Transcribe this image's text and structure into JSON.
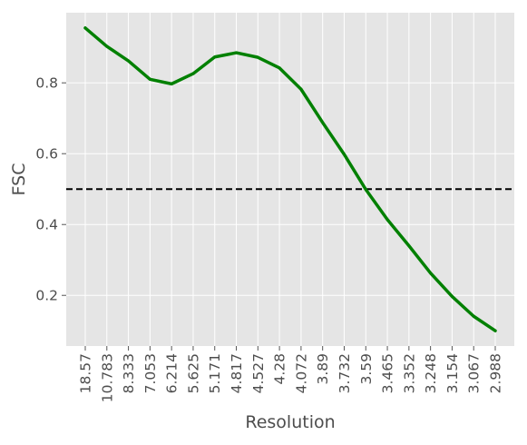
{
  "chart_data": {
    "type": "line",
    "title": "",
    "xlabel": "Resolution",
    "ylabel": "FSC",
    "categories": [
      "18.57",
      "10.783",
      "8.333",
      "7.053",
      "6.214",
      "5.625",
      "5.171",
      "4.817",
      "4.527",
      "4.28",
      "4.072",
      "3.89",
      "3.732",
      "3.59",
      "3.465",
      "3.352",
      "3.248",
      "3.154",
      "3.067",
      "2.988"
    ],
    "series": [
      {
        "color": "#008000",
        "values": [
          0.955,
          0.903,
          0.862,
          0.81,
          0.797,
          0.826,
          0.873,
          0.885,
          0.872,
          0.842,
          0.782,
          0.688,
          0.598,
          0.499,
          0.414,
          0.34,
          0.263,
          0.197,
          0.141,
          0.1
        ]
      }
    ],
    "threshold": {
      "value": 0.5,
      "style": "dashed",
      "color": "#000000"
    },
    "yticks": [
      0.2,
      0.4,
      0.6,
      0.8
    ],
    "ylim": [
      0.057,
      0.998
    ],
    "grid": true,
    "background": "#e5e5e5",
    "tick_label_rotation": "vertical"
  }
}
